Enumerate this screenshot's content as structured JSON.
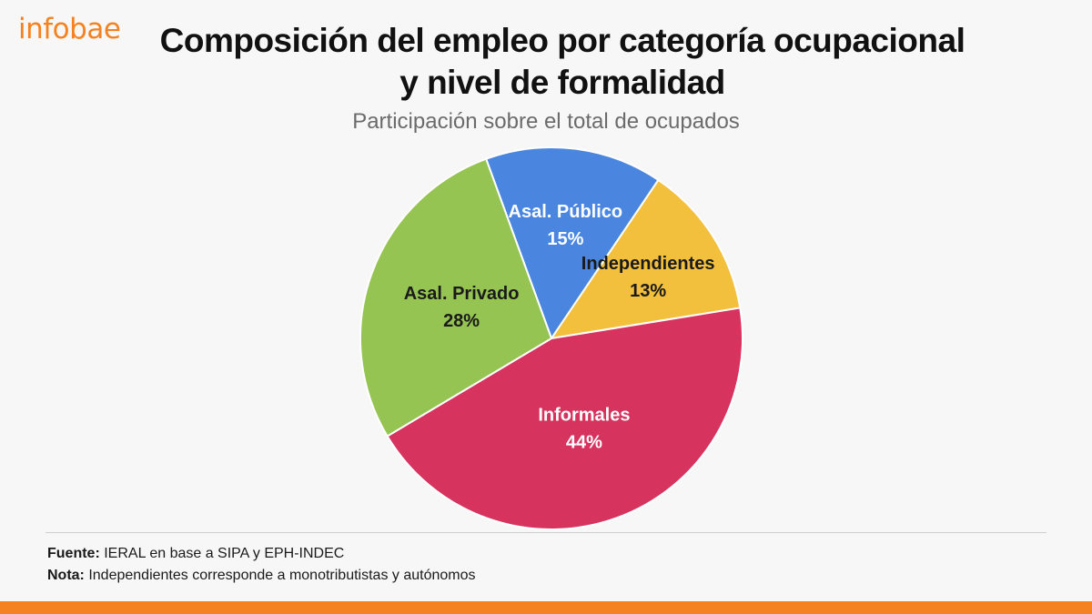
{
  "brand": {
    "logo_text": "infobae",
    "accent_color": "#f58220"
  },
  "title_line1": "Composición del empleo por categoría ocupacional",
  "title_line2": "y nivel de formalidad",
  "subtitle": "Participación sobre el total de ocupados",
  "chart_data": {
    "type": "pie",
    "title": "Composición del empleo por categoría ocupacional y nivel de formalidad",
    "subtitle": "Participación sobre el total de ocupados",
    "start_angle_deg": -20,
    "direction": "clockwise",
    "slices": [
      {
        "label": "Asal. Público",
        "value": 15,
        "value_label": "15%",
        "color": "#4a86e0",
        "text_color": "#ffffff"
      },
      {
        "label": "Independientes",
        "value": 13,
        "value_label": "13%",
        "color": "#f3c03d",
        "text_color": "#1a1a1a"
      },
      {
        "label": "Informales",
        "value": 44,
        "value_label": "44%",
        "color": "#d6335f",
        "text_color": "#ffffff"
      },
      {
        "label": "Asal. Privado",
        "value": 28,
        "value_label": "28%",
        "color": "#95c453",
        "text_color": "#1a1a1a"
      }
    ]
  },
  "footer": {
    "source_label": "Fuente:",
    "source_text": " IERAL en base a SIPA y EPH-INDEC",
    "note_label": "Nota:",
    "note_text": " Independientes corresponde a monotributistas y autónomos"
  }
}
